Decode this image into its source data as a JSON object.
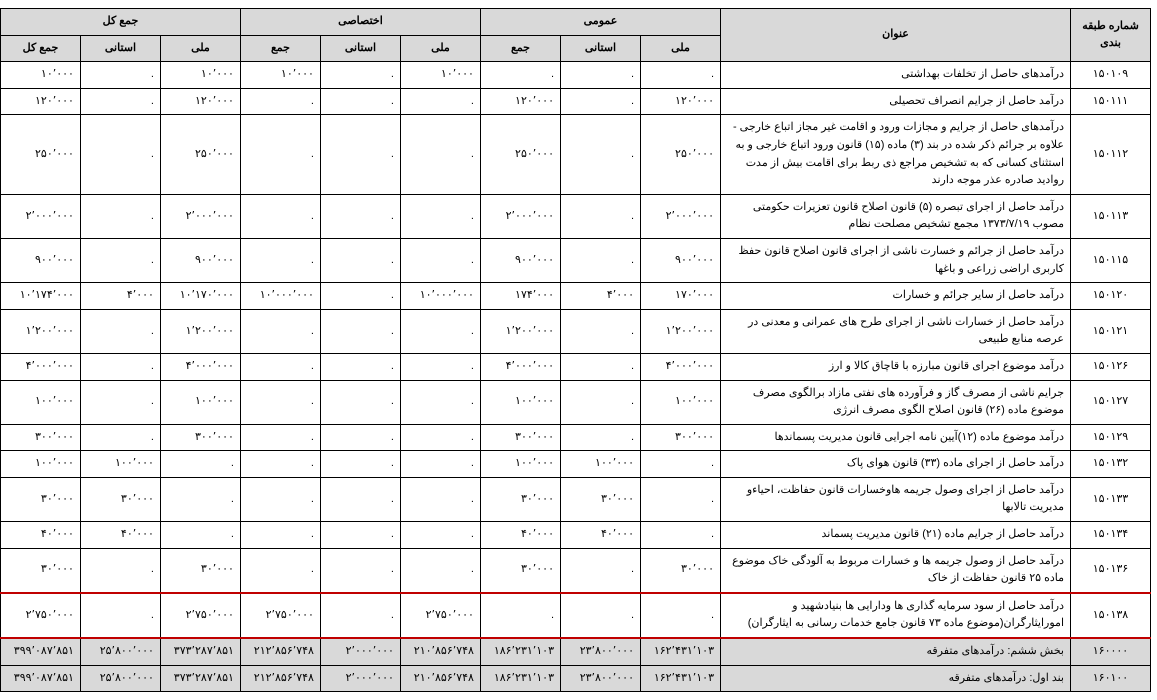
{
  "columns": {
    "code": "شماره طبقه بندی",
    "title": "عنوان",
    "group_general": "عمومی",
    "group_special": "اختصاصی",
    "group_total": "جمع کل",
    "sub_national": "ملی",
    "sub_provincial": "استانی",
    "sub_sum": "جمع",
    "sub_grand": "جمع کل"
  },
  "rows": [
    {
      "code": "۱۵۰۱۰۹",
      "title": "درآمدهای حاصل از تخلفات بهداشتی",
      "gn": ".",
      "gp": ".",
      "gs": ".",
      "sn": "۱۰٬۰۰۰",
      "sp": ".",
      "ss": "۱۰٬۰۰۰",
      "tn": "۱۰٬۰۰۰",
      "tp": ".",
      "tt": "۱۰٬۰۰۰"
    },
    {
      "code": "۱۵۰۱۱۱",
      "title": "درآمد حاصل از جرایم انصراف تحصیلی",
      "gn": "۱۲۰٬۰۰۰",
      "gp": ".",
      "gs": "۱۲۰٬۰۰۰",
      "sn": ".",
      "sp": ".",
      "ss": ".",
      "tn": "۱۲۰٬۰۰۰",
      "tp": ".",
      "tt": "۱۲۰٬۰۰۰"
    },
    {
      "code": "۱۵۰۱۱۲",
      "title": "درآمدهای حاصل از جرایم و مجازات ورود و اقامت غیر مجاز اتباع خارجی - علاوه بر جرائم  ذکر شده در بند (۳) ماده (۱۵) قانون ورود اتباع خارجی و به استثنای  کسانی که به تشخیص مراجع ذی ربط برای اقامت بیش از مدت روادید صادره عذر موجه دارند",
      "gn": "۲۵۰٬۰۰۰",
      "gp": ".",
      "gs": "۲۵۰٬۰۰۰",
      "sn": ".",
      "sp": ".",
      "ss": ".",
      "tn": "۲۵۰٬۰۰۰",
      "tp": ".",
      "tt": "۲۵۰٬۰۰۰"
    },
    {
      "code": "۱۵۰۱۱۳",
      "title": "درآمد حاصل از اجرای تبصره (۵) قانون اصلاح قانون تعزیرات حکومتی مصوب ۱۳۷۳/۷/۱۹ مجمع تشخیص مصلحت نظام",
      "gn": "۲٬۰۰۰٬۰۰۰",
      "gp": ".",
      "gs": "۲٬۰۰۰٬۰۰۰",
      "sn": ".",
      "sp": ".",
      "ss": ".",
      "tn": "۲٬۰۰۰٬۰۰۰",
      "tp": ".",
      "tt": "۲٬۰۰۰٬۰۰۰"
    },
    {
      "code": "۱۵۰۱۱۵",
      "title": "درآمد حاصل از جرائم و خسارت ناشی از اجرای قانون اصلاح قانون حفظ کاربری اراضی زراعی  و باغها",
      "gn": "۹۰۰٬۰۰۰",
      "gp": ".",
      "gs": "۹۰۰٬۰۰۰",
      "sn": ".",
      "sp": ".",
      "ss": ".",
      "tn": "۹۰۰٬۰۰۰",
      "tp": ".",
      "tt": "۹۰۰٬۰۰۰"
    },
    {
      "code": "۱۵۰۱۲۰",
      "title": "درآمد حاصل از سایر جرائم و خسارات",
      "gn": "۱۷۰٬۰۰۰",
      "gp": "۴٬۰۰۰",
      "gs": "۱۷۴٬۰۰۰",
      "sn": "۱۰٬۰۰۰٬۰۰۰",
      "sp": ".",
      "ss": "۱۰٬۰۰۰٬۰۰۰",
      "tn": "۱۰٬۱۷۰٬۰۰۰",
      "tp": "۴٬۰۰۰",
      "tt": "۱۰٬۱۷۴٬۰۰۰"
    },
    {
      "code": "۱۵۰۱۲۱",
      "title": "درآمد حاصل از خسارات ناشی از اجرای طرح های عمرانی و معدنی در عرصه منابع طبیعی",
      "gn": "۱٬۲۰۰٬۰۰۰",
      "gp": ".",
      "gs": "۱٬۲۰۰٬۰۰۰",
      "sn": ".",
      "sp": ".",
      "ss": ".",
      "tn": "۱٬۲۰۰٬۰۰۰",
      "tp": ".",
      "tt": "۱٬۲۰۰٬۰۰۰"
    },
    {
      "code": "۱۵۰۱۲۶",
      "title": "درآمد موضوع اجرای قانون مبارزه با قاچاق کالا و ارز",
      "gn": "۴٬۰۰۰٬۰۰۰",
      "gp": ".",
      "gs": "۴٬۰۰۰٬۰۰۰",
      "sn": ".",
      "sp": ".",
      "ss": ".",
      "tn": "۴٬۰۰۰٬۰۰۰",
      "tp": ".",
      "tt": "۴٬۰۰۰٬۰۰۰"
    },
    {
      "code": "۱۵۰۱۲۷",
      "title": "جرایم ناشی از مصرف گاز و فرآورده های نفتی مازاد برالگوی مصرف موضوع ماده (۲۶) قانون اصلاح الگوی مصرف انرژی",
      "gn": "۱۰۰٬۰۰۰",
      "gp": ".",
      "gs": "۱۰۰٬۰۰۰",
      "sn": ".",
      "sp": ".",
      "ss": ".",
      "tn": "۱۰۰٬۰۰۰",
      "tp": ".",
      "tt": "۱۰۰٬۰۰۰"
    },
    {
      "code": "۱۵۰۱۲۹",
      "title": "درآمد موضوع ماده (۱۲)آیین نامه اجرایی قانون مدیریت پسماندها",
      "gn": "۳۰۰٬۰۰۰",
      "gp": ".",
      "gs": "۳۰۰٬۰۰۰",
      "sn": ".",
      "sp": ".",
      "ss": ".",
      "tn": "۳۰۰٬۰۰۰",
      "tp": ".",
      "tt": "۳۰۰٬۰۰۰"
    },
    {
      "code": "۱۵۰۱۳۲",
      "title": "درآمد حاصل از اجرای ماده (۳۳) قانون هوای پاک",
      "gn": ".",
      "gp": "۱۰۰٬۰۰۰",
      "gs": "۱۰۰٬۰۰۰",
      "sn": ".",
      "sp": ".",
      "ss": ".",
      "tn": ".",
      "tp": "۱۰۰٬۰۰۰",
      "tt": "۱۰۰٬۰۰۰"
    },
    {
      "code": "۱۵۰۱۳۳",
      "title": "درآمد حاصل از اجرای وصول جریمه هاوخسارات قانون حفاظت، احیاءو مدیریت تالابها",
      "gn": ".",
      "gp": "۳۰٬۰۰۰",
      "gs": "۳۰٬۰۰۰",
      "sn": ".",
      "sp": ".",
      "ss": ".",
      "tn": ".",
      "tp": "۳۰٬۰۰۰",
      "tt": "۳۰٬۰۰۰"
    },
    {
      "code": "۱۵۰۱۳۴",
      "title": "درآمد حاصل از جرایم ماده (۲۱) قانون مدیریت پسماند",
      "gn": ".",
      "gp": "۴۰٬۰۰۰",
      "gs": "۴۰٬۰۰۰",
      "sn": ".",
      "sp": ".",
      "ss": ".",
      "tn": ".",
      "tp": "۴۰٬۰۰۰",
      "tt": "۴۰٬۰۰۰"
    },
    {
      "code": "۱۵۰۱۳۶",
      "title": "درآمد حاصل از وصول جریمه ها و خسارات مربوط به آلودگی خاک موضوع ماده ۲۵ قانون حفاظت از خاک",
      "gn": "۳۰٬۰۰۰",
      "gp": ".",
      "gs": "۳۰٬۰۰۰",
      "sn": ".",
      "sp": ".",
      "ss": ".",
      "tn": "۳۰٬۰۰۰",
      "tp": ".",
      "tt": "۳۰٬۰۰۰"
    },
    {
      "hl": true,
      "code": "۱۵۰۱۳۸",
      "title": "درآمد حاصل از سود سرمایه گذاری ها ودارایی ها بنیادشهید و امورایثارگران(موضوع ماده ۷۳ قانون جامع خدمات رسانی به ایثارگران)",
      "gn": ".",
      "gp": ".",
      "gs": ".",
      "sn": "۲٬۷۵۰٬۰۰۰",
      "sp": ".",
      "ss": "۲٬۷۵۰٬۰۰۰",
      "tn": "۲٬۷۵۰٬۰۰۰",
      "tp": ".",
      "tt": "۲٬۷۵۰٬۰۰۰"
    },
    {
      "totals": true,
      "code": "۱۶۰۰۰۰",
      "title": "بخش ششم: درآمدهای متفرقه",
      "gn": "۱۶۲٬۴۳۱٬۱۰۳",
      "gp": "۲۳٬۸۰۰٬۰۰۰",
      "gs": "۱۸۶٬۲۳۱٬۱۰۳",
      "sn": "۲۱۰٬۸۵۶٬۷۴۸",
      "sp": "۲٬۰۰۰٬۰۰۰",
      "ss": "۲۱۲٬۸۵۶٬۷۴۸",
      "tn": "۳۷۳٬۲۸۷٬۸۵۱",
      "tp": "۲۵٬۸۰۰٬۰۰۰",
      "tt": "۳۹۹٬۰۸۷٬۸۵۱"
    },
    {
      "totals": true,
      "code": "۱۶۰۱۰۰",
      "title": "بند اول: درآمدهای متفرقه",
      "gn": "۱۶۲٬۴۳۱٬۱۰۳",
      "gp": "۲۳٬۸۰۰٬۰۰۰",
      "gs": "۱۸۶٬۲۳۱٬۱۰۳",
      "sn": "۲۱۰٬۸۵۶٬۷۴۸",
      "sp": "۲٬۰۰۰٬۰۰۰",
      "ss": "۲۱۲٬۸۵۶٬۷۴۸",
      "tn": "۳۷۳٬۲۸۷٬۸۵۱",
      "tp": "۲۵٬۸۰۰٬۰۰۰",
      "tt": "۳۹۹٬۰۸۷٬۸۵۱"
    }
  ]
}
